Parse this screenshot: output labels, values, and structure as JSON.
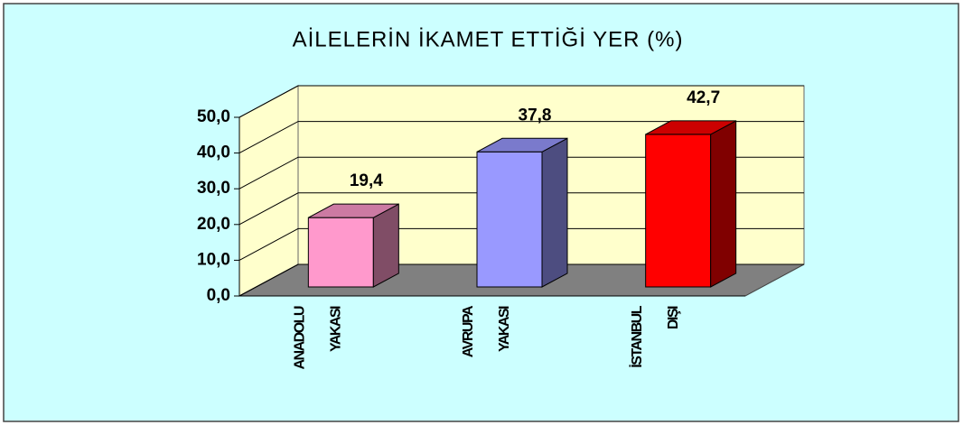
{
  "chart_data": {
    "type": "bar3d",
    "title": "AİLELERİN İKAMET ETTİĞİ YER (%)",
    "categories": [
      [
        "ANADOLU",
        "YAKASI"
      ],
      [
        "AVRUPA",
        "YAKASI"
      ],
      [
        "İSTANBUL",
        "DIŞI"
      ]
    ],
    "values": [
      19.4,
      37.8,
      42.7
    ],
    "value_labels": [
      "19,4",
      "37,8",
      "42,7"
    ],
    "colors": [
      "#ff99cc",
      "#9999ff",
      "#ff0000"
    ],
    "ylim": [
      0,
      50
    ],
    "yticks": [
      {
        "value": 0,
        "label": "0,0"
      },
      {
        "value": 10,
        "label": "10,0"
      },
      {
        "value": 20,
        "label": "20,0"
      },
      {
        "value": 30,
        "label": "30,0"
      },
      {
        "value": 40,
        "label": "40,0"
      },
      {
        "value": 50,
        "label": "50,0"
      }
    ],
    "grid": true
  }
}
